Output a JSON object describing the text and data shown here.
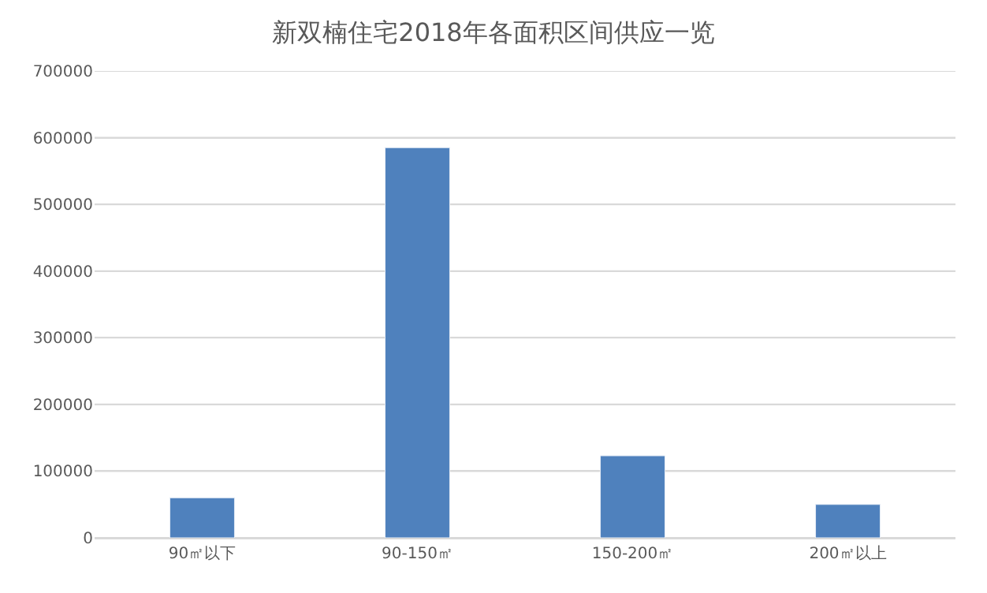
{
  "chart_data": {
    "type": "bar",
    "title": "新双楠住宅2018年各面积区间供应一览",
    "categories": [
      "90㎡以下",
      "90-150㎡",
      "150-200㎡",
      "200㎡以上"
    ],
    "values": [
      60000,
      585000,
      123000,
      50000
    ],
    "color": "#4f81bd",
    "ylim": [
      0,
      700000
    ],
    "yticks": [
      0,
      100000,
      200000,
      300000,
      400000,
      500000,
      600000,
      700000
    ],
    "grid": "y"
  }
}
